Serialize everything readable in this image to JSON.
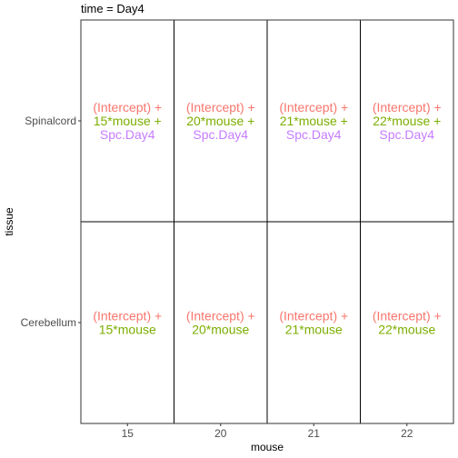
{
  "chart_data": {
    "type": "table",
    "title": "time = Day4",
    "xlabel": "mouse",
    "ylabel": "tissue",
    "x_categories": [
      "15",
      "20",
      "21",
      "22"
    ],
    "y_categories": [
      "Spinalcord",
      "Cerebellum"
    ],
    "grid": false,
    "colors": {
      "intercept": "#F8766D",
      "mouse": "#7CAE00",
      "interaction": "#C77CFF",
      "panel_border": "#000000",
      "frame": "#333333",
      "axis_text": "#4d4d4d"
    },
    "cells": [
      {
        "tissue": "Spinalcord",
        "mouse": "15",
        "lines": [
          {
            "text": "(Intercept) +",
            "term": "intercept"
          },
          {
            "text": "15*mouse +",
            "term": "mouse"
          },
          {
            "text": "Spc.Day4",
            "term": "interaction"
          }
        ]
      },
      {
        "tissue": "Spinalcord",
        "mouse": "20",
        "lines": [
          {
            "text": "(Intercept) +",
            "term": "intercept"
          },
          {
            "text": "20*mouse +",
            "term": "mouse"
          },
          {
            "text": "Spc.Day4",
            "term": "interaction"
          }
        ]
      },
      {
        "tissue": "Spinalcord",
        "mouse": "21",
        "lines": [
          {
            "text": "(Intercept) +",
            "term": "intercept"
          },
          {
            "text": "21*mouse +",
            "term": "mouse"
          },
          {
            "text": "Spc.Day4",
            "term": "interaction"
          }
        ]
      },
      {
        "tissue": "Spinalcord",
        "mouse": "22",
        "lines": [
          {
            "text": "(Intercept) +",
            "term": "intercept"
          },
          {
            "text": "22*mouse +",
            "term": "mouse"
          },
          {
            "text": "Spc.Day4",
            "term": "interaction"
          }
        ]
      },
      {
        "tissue": "Cerebellum",
        "mouse": "15",
        "lines": [
          {
            "text": "(Intercept) +",
            "term": "intercept"
          },
          {
            "text": "15*mouse",
            "term": "mouse"
          }
        ]
      },
      {
        "tissue": "Cerebellum",
        "mouse": "20",
        "lines": [
          {
            "text": "(Intercept) +",
            "term": "intercept"
          },
          {
            "text": "20*mouse",
            "term": "mouse"
          }
        ]
      },
      {
        "tissue": "Cerebellum",
        "mouse": "21",
        "lines": [
          {
            "text": "(Intercept) +",
            "term": "intercept"
          },
          {
            "text": "21*mouse",
            "term": "mouse"
          }
        ]
      },
      {
        "tissue": "Cerebellum",
        "mouse": "22",
        "lines": [
          {
            "text": "(Intercept) +",
            "term": "intercept"
          },
          {
            "text": "22*mouse",
            "term": "mouse"
          }
        ]
      }
    ]
  }
}
